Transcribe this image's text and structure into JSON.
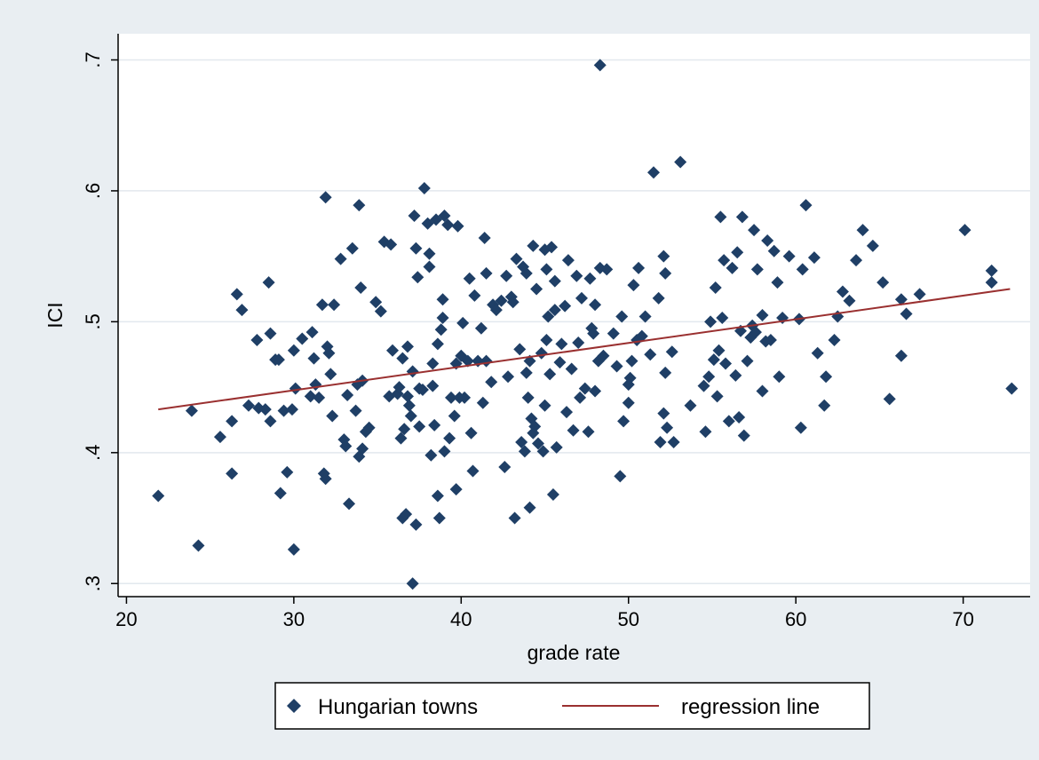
{
  "chart_data": {
    "type": "scatter",
    "xlabel": "grade rate",
    "ylabel": "ICI",
    "xlim": [
      19.5,
      74
    ],
    "ylim": [
      0.29,
      0.72
    ],
    "xticks": [
      20,
      30,
      40,
      50,
      60,
      70
    ],
    "xtick_labels": [
      "20",
      "30",
      "40",
      "50",
      "60",
      "70"
    ],
    "yticks": [
      0.3,
      0.4,
      0.5,
      0.6,
      0.7
    ],
    "ytick_labels": [
      ".3",
      ".4",
      ".5",
      ".6",
      ".7"
    ],
    "grid": "horizontal",
    "legend_position": "bottom",
    "colors": {
      "points": "#1f3f66",
      "line": "#9a3030",
      "outer_background": "#e9eef2",
      "plot_background": "#ffffff",
      "gridline": "#e2e8ee"
    },
    "series": [
      {
        "name": "Hungarian towns",
        "kind": "scatter",
        "marker": "diamond",
        "points": [
          [
            21.9,
            0.367
          ],
          [
            23.9,
            0.432
          ],
          [
            24.3,
            0.329
          ],
          [
            25.6,
            0.412
          ],
          [
            26.3,
            0.424
          ],
          [
            26.3,
            0.384
          ],
          [
            26.6,
            0.521
          ],
          [
            26.9,
            0.509
          ],
          [
            27.3,
            0.436
          ],
          [
            27.8,
            0.486
          ],
          [
            27.9,
            0.434
          ],
          [
            28.3,
            0.433
          ],
          [
            28.5,
            0.53
          ],
          [
            28.6,
            0.424
          ],
          [
            28.6,
            0.491
          ],
          [
            28.9,
            0.471
          ],
          [
            29.1,
            0.471
          ],
          [
            29.2,
            0.369
          ],
          [
            29.4,
            0.432
          ],
          [
            29.6,
            0.385
          ],
          [
            29.9,
            0.433
          ],
          [
            30.0,
            0.478
          ],
          [
            30.0,
            0.326
          ],
          [
            30.1,
            0.449
          ],
          [
            30.5,
            0.487
          ],
          [
            31.0,
            0.443
          ],
          [
            31.1,
            0.492
          ],
          [
            31.2,
            0.472
          ],
          [
            31.3,
            0.452
          ],
          [
            31.5,
            0.442
          ],
          [
            31.7,
            0.513
          ],
          [
            31.8,
            0.384
          ],
          [
            31.9,
            0.595
          ],
          [
            31.9,
            0.38
          ],
          [
            32.0,
            0.481
          ],
          [
            32.1,
            0.476
          ],
          [
            32.2,
            0.46
          ],
          [
            32.3,
            0.428
          ],
          [
            32.4,
            0.513
          ],
          [
            32.8,
            0.548
          ],
          [
            33.0,
            0.41
          ],
          [
            33.1,
            0.405
          ],
          [
            33.2,
            0.444
          ],
          [
            33.3,
            0.361
          ],
          [
            33.5,
            0.556
          ],
          [
            33.7,
            0.432
          ],
          [
            33.8,
            0.452
          ],
          [
            33.9,
            0.397
          ],
          [
            33.9,
            0.589
          ],
          [
            34.0,
            0.526
          ],
          [
            34.1,
            0.403
          ],
          [
            34.1,
            0.455
          ],
          [
            34.3,
            0.416
          ],
          [
            34.5,
            0.419
          ],
          [
            34.9,
            0.515
          ],
          [
            35.2,
            0.508
          ],
          [
            35.4,
            0.561
          ],
          [
            35.7,
            0.443
          ],
          [
            35.8,
            0.559
          ],
          [
            35.9,
            0.478
          ],
          [
            36.2,
            0.445
          ],
          [
            36.3,
            0.45
          ],
          [
            36.4,
            0.411
          ],
          [
            36.5,
            0.35
          ],
          [
            36.5,
            0.472
          ],
          [
            36.6,
            0.418
          ],
          [
            36.7,
            0.353
          ],
          [
            36.8,
            0.443
          ],
          [
            36.8,
            0.481
          ],
          [
            36.9,
            0.436
          ],
          [
            37.0,
            0.428
          ],
          [
            37.1,
            0.3
          ],
          [
            37.1,
            0.462
          ],
          [
            37.2,
            0.581
          ],
          [
            37.3,
            0.345
          ],
          [
            37.3,
            0.556
          ],
          [
            37.4,
            0.534
          ],
          [
            37.5,
            0.42
          ],
          [
            37.5,
            0.449
          ],
          [
            37.7,
            0.448
          ],
          [
            37.8,
            0.602
          ],
          [
            38.0,
            0.575
          ],
          [
            38.1,
            0.552
          ],
          [
            38.1,
            0.542
          ],
          [
            38.2,
            0.398
          ],
          [
            38.3,
            0.451
          ],
          [
            38.3,
            0.468
          ],
          [
            38.4,
            0.421
          ],
          [
            38.5,
            0.578
          ],
          [
            38.6,
            0.483
          ],
          [
            38.6,
            0.367
          ],
          [
            38.7,
            0.35
          ],
          [
            38.8,
            0.494
          ],
          [
            38.9,
            0.517
          ],
          [
            38.9,
            0.503
          ],
          [
            39.0,
            0.581
          ],
          [
            39.0,
            0.401
          ],
          [
            39.2,
            0.574
          ],
          [
            39.3,
            0.411
          ],
          [
            39.4,
            0.442
          ],
          [
            39.6,
            0.428
          ],
          [
            39.7,
            0.468
          ],
          [
            39.7,
            0.372
          ],
          [
            39.8,
            0.573
          ],
          [
            39.9,
            0.442
          ],
          [
            40.0,
            0.474
          ],
          [
            40.1,
            0.499
          ],
          [
            40.2,
            0.442
          ],
          [
            40.4,
            0.47
          ],
          [
            40.5,
            0.533
          ],
          [
            40.6,
            0.415
          ],
          [
            40.7,
            0.386
          ],
          [
            40.8,
            0.52
          ],
          [
            41.0,
            0.47
          ],
          [
            41.2,
            0.495
          ],
          [
            41.3,
            0.438
          ],
          [
            41.4,
            0.564
          ],
          [
            41.5,
            0.537
          ],
          [
            41.5,
            0.47
          ],
          [
            41.8,
            0.454
          ],
          [
            41.9,
            0.513
          ],
          [
            42.1,
            0.509
          ],
          [
            42.4,
            0.516
          ],
          [
            42.6,
            0.389
          ],
          [
            42.7,
            0.535
          ],
          [
            42.8,
            0.458
          ],
          [
            43.0,
            0.519
          ],
          [
            43.1,
            0.515
          ],
          [
            43.2,
            0.35
          ],
          [
            43.3,
            0.548
          ],
          [
            43.5,
            0.479
          ],
          [
            43.6,
            0.408
          ],
          [
            43.7,
            0.542
          ],
          [
            43.8,
            0.401
          ],
          [
            43.9,
            0.537
          ],
          [
            43.9,
            0.461
          ],
          [
            44.0,
            0.442
          ],
          [
            44.1,
            0.358
          ],
          [
            44.1,
            0.47
          ],
          [
            44.2,
            0.426
          ],
          [
            44.3,
            0.415
          ],
          [
            44.3,
            0.558
          ],
          [
            44.4,
            0.42
          ],
          [
            44.5,
            0.525
          ],
          [
            44.6,
            0.407
          ],
          [
            44.8,
            0.476
          ],
          [
            44.9,
            0.401
          ],
          [
            45.0,
            0.555
          ],
          [
            45.0,
            0.436
          ],
          [
            45.1,
            0.486
          ],
          [
            45.1,
            0.54
          ],
          [
            45.2,
            0.504
          ],
          [
            45.3,
            0.46
          ],
          [
            45.4,
            0.557
          ],
          [
            45.5,
            0.368
          ],
          [
            45.6,
            0.509
          ],
          [
            45.6,
            0.531
          ],
          [
            45.7,
            0.404
          ],
          [
            45.9,
            0.469
          ],
          [
            46.0,
            0.483
          ],
          [
            46.2,
            0.512
          ],
          [
            46.3,
            0.431
          ],
          [
            46.4,
            0.547
          ],
          [
            46.6,
            0.464
          ],
          [
            46.7,
            0.417
          ],
          [
            46.9,
            0.535
          ],
          [
            47.0,
            0.484
          ],
          [
            47.1,
            0.442
          ],
          [
            47.2,
            0.518
          ],
          [
            47.4,
            0.449
          ],
          [
            47.6,
            0.416
          ],
          [
            47.7,
            0.533
          ],
          [
            47.8,
            0.495
          ],
          [
            47.9,
            0.491
          ],
          [
            48.0,
            0.513
          ],
          [
            48.0,
            0.447
          ],
          [
            48.2,
            0.47
          ],
          [
            48.3,
            0.696
          ],
          [
            48.3,
            0.541
          ],
          [
            48.5,
            0.474
          ],
          [
            48.7,
            0.54
          ],
          [
            49.1,
            0.491
          ],
          [
            49.3,
            0.466
          ],
          [
            49.5,
            0.382
          ],
          [
            49.6,
            0.504
          ],
          [
            49.7,
            0.424
          ],
          [
            50.0,
            0.438
          ],
          [
            50.0,
            0.452
          ],
          [
            50.1,
            0.457
          ],
          [
            50.2,
            0.47
          ],
          [
            50.3,
            0.528
          ],
          [
            50.5,
            0.486
          ],
          [
            50.6,
            0.541
          ],
          [
            50.8,
            0.489
          ],
          [
            51.0,
            0.504
          ],
          [
            51.3,
            0.475
          ],
          [
            51.5,
            0.614
          ],
          [
            51.8,
            0.518
          ],
          [
            51.9,
            0.408
          ],
          [
            52.1,
            0.55
          ],
          [
            52.1,
            0.43
          ],
          [
            52.2,
            0.537
          ],
          [
            52.2,
            0.461
          ],
          [
            52.3,
            0.419
          ],
          [
            52.6,
            0.477
          ],
          [
            52.7,
            0.408
          ],
          [
            53.1,
            0.622
          ],
          [
            53.7,
            0.436
          ],
          [
            54.5,
            0.451
          ],
          [
            54.6,
            0.416
          ],
          [
            54.8,
            0.458
          ],
          [
            54.9,
            0.5
          ],
          [
            55.1,
            0.471
          ],
          [
            55.2,
            0.526
          ],
          [
            55.3,
            0.443
          ],
          [
            55.4,
            0.478
          ],
          [
            55.5,
            0.58
          ],
          [
            55.6,
            0.503
          ],
          [
            55.7,
            0.547
          ],
          [
            55.8,
            0.468
          ],
          [
            56.0,
            0.424
          ],
          [
            56.2,
            0.541
          ],
          [
            56.4,
            0.459
          ],
          [
            56.5,
            0.553
          ],
          [
            56.6,
            0.427
          ],
          [
            56.7,
            0.493
          ],
          [
            56.8,
            0.58
          ],
          [
            56.9,
            0.413
          ],
          [
            57.1,
            0.47
          ],
          [
            57.3,
            0.488
          ],
          [
            57.4,
            0.497
          ],
          [
            57.5,
            0.57
          ],
          [
            57.6,
            0.492
          ],
          [
            57.7,
            0.54
          ],
          [
            58.0,
            0.505
          ],
          [
            58.0,
            0.447
          ],
          [
            58.2,
            0.485
          ],
          [
            58.3,
            0.562
          ],
          [
            58.5,
            0.486
          ],
          [
            58.7,
            0.554
          ],
          [
            58.9,
            0.53
          ],
          [
            59.0,
            0.458
          ],
          [
            59.2,
            0.503
          ],
          [
            59.6,
            0.55
          ],
          [
            60.3,
            0.419
          ],
          [
            60.2,
            0.502
          ],
          [
            60.4,
            0.54
          ],
          [
            60.6,
            0.589
          ],
          [
            61.1,
            0.549
          ],
          [
            61.3,
            0.476
          ],
          [
            61.7,
            0.436
          ],
          [
            61.8,
            0.458
          ],
          [
            62.3,
            0.486
          ],
          [
            62.5,
            0.504
          ],
          [
            62.8,
            0.523
          ],
          [
            63.2,
            0.516
          ],
          [
            63.6,
            0.547
          ],
          [
            64.0,
            0.57
          ],
          [
            64.6,
            0.558
          ],
          [
            65.2,
            0.53
          ],
          [
            65.6,
            0.441
          ],
          [
            66.3,
            0.517
          ],
          [
            66.3,
            0.474
          ],
          [
            66.6,
            0.506
          ],
          [
            67.4,
            0.521
          ],
          [
            70.1,
            0.57
          ],
          [
            71.7,
            0.539
          ],
          [
            71.7,
            0.53
          ],
          [
            72.9,
            0.449
          ]
        ]
      },
      {
        "name": "regression line",
        "kind": "line",
        "points": [
          [
            21.9,
            0.433
          ],
          [
            72.8,
            0.525
          ]
        ]
      }
    ]
  }
}
